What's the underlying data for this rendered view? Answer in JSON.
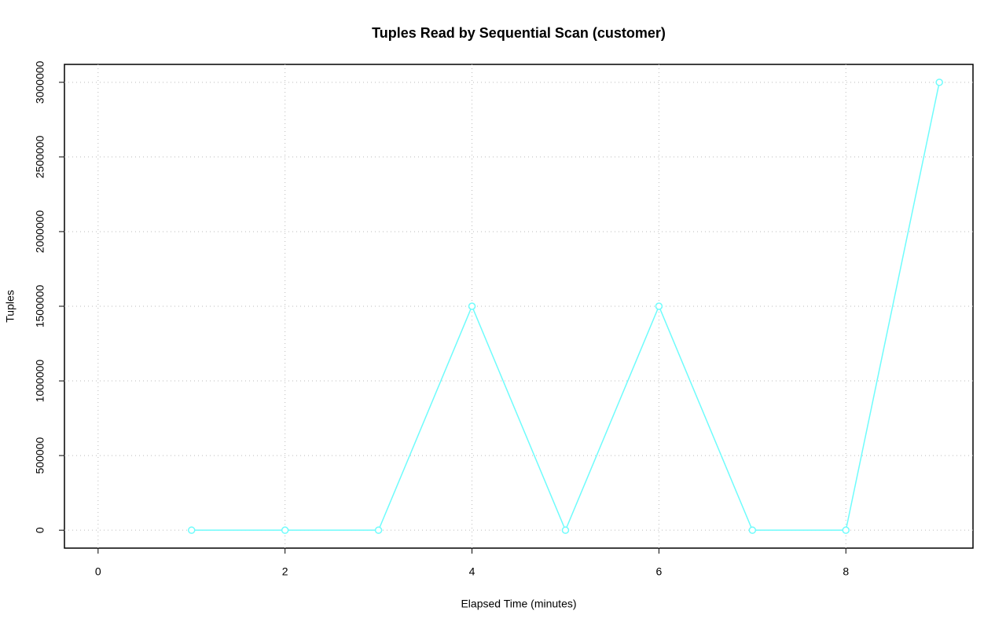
{
  "chart_data": {
    "type": "line",
    "title": "Tuples Read by Sequential Scan (customer)",
    "x_label": "Elapsed Time (minutes)",
    "y_label": "Tuples",
    "x": [
      1,
      2,
      3,
      4,
      5,
      6,
      7,
      8,
      9
    ],
    "series": [
      {
        "name": "customer",
        "color": "#6ffcfc",
        "values": [
          0,
          0,
          0,
          1500000,
          0,
          1500000,
          0,
          0,
          3000000
        ]
      }
    ],
    "xlim": [
      -0.36,
      9.36
    ],
    "ylim": [
      -120000,
      3120000
    ],
    "xticks": [
      0,
      2,
      4,
      6,
      8
    ],
    "yticks": [
      0,
      500000,
      1000000,
      1500000,
      2000000,
      2500000,
      3000000
    ],
    "grid": true
  }
}
